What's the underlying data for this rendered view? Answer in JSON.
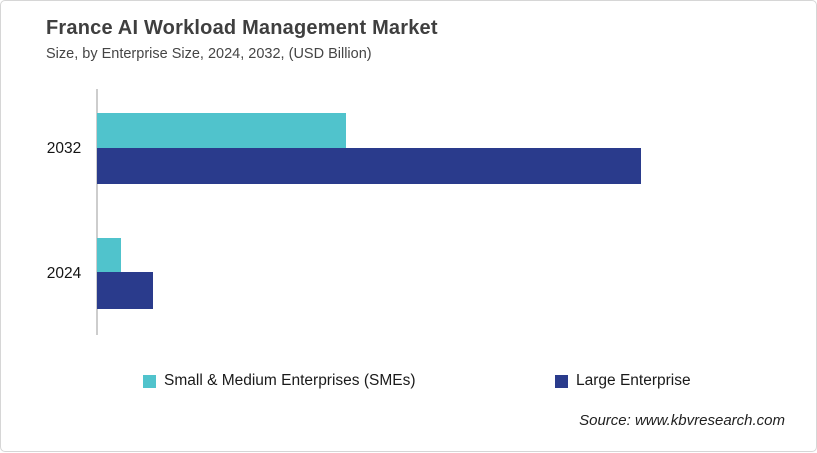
{
  "header": {
    "title": "France AI Workload Management Market",
    "subtitle": "Size, by Enterprise Size, 2024, 2032, (USD Billion)"
  },
  "footer": {
    "source": "Source: www.kbvresearch.com"
  },
  "colors": {
    "sme_teal": "#50C3CC",
    "large_navy": "#2A3B8C",
    "axis_line": "#CDCDCD",
    "title_text": "#3F3F3F",
    "frame_border": "#D6D6D6"
  },
  "legend": {
    "items": [
      {
        "label": "Small & Medium Enterprises (SMEs)",
        "color": "#50C3CC"
      },
      {
        "label": "Large Enterprise",
        "color": "#2A3B8C"
      }
    ]
  },
  "chart_data": {
    "type": "bar",
    "orientation": "horizontal",
    "title": "France AI Workload Management Market",
    "subtitle": "Size, by Enterprise Size, 2024, 2032, (USD Billion)",
    "unit": "USD Billion",
    "categories": [
      "2032",
      "2024"
    ],
    "series": [
      {
        "name": "Small & Medium Enterprises (SMEs)",
        "color": "#50C3CC",
        "values_relative": [
          0.458,
          0.044
        ]
      },
      {
        "name": "Large Enterprise",
        "color": "#2A3B8C",
        "values_relative": [
          1.0,
          0.103
        ]
      }
    ],
    "value_axis": "unlabeled",
    "note": "No numeric axis, gridlines or data labels shown; values are estimated fractions of the longest bar (Large Enterprise 2032 = 1.0).",
    "grid": false,
    "legend_position": "bottom"
  }
}
